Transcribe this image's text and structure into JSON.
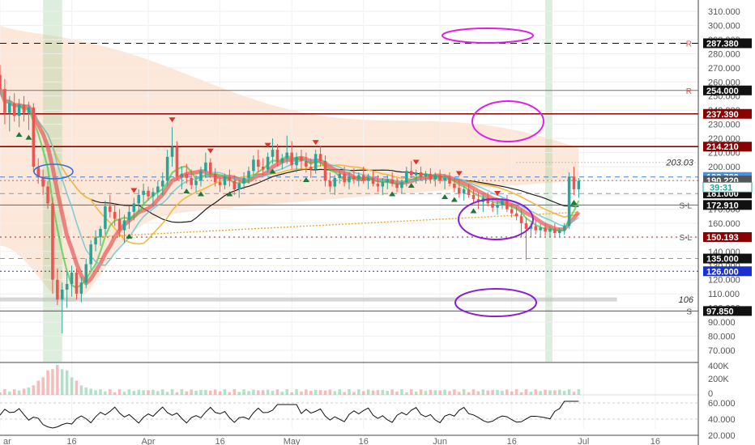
{
  "chart_data": {
    "type": "candlestick",
    "price_axis": {
      "ylim": [
        62,
        318
      ],
      "ticks": [
        "70.000",
        "80.000",
        "90.000",
        "100.000",
        "110.000",
        "120.000",
        "130.000",
        "140.000",
        "150.000",
        "160.000",
        "170.000",
        "180.000",
        "190.000",
        "200.000",
        "210.000",
        "220.000",
        "230.000",
        "240.000",
        "250.000",
        "260.000",
        "270.000",
        "280.000",
        "290.000",
        "300.000",
        "310.000"
      ]
    },
    "volume_axis": {
      "ticks": [
        "400K",
        "200K",
        "0"
      ]
    },
    "rsi_axis": {
      "ylim": [
        20,
        68
      ],
      "ticks": [
        "60.000",
        "40.000",
        "20.000"
      ]
    },
    "x_ticks": [
      {
        "label": "ar",
        "day": 0
      },
      {
        "label": "16",
        "day": 15
      },
      {
        "label": "Apr",
        "day": 31
      },
      {
        "label": "16",
        "day": 46
      },
      {
        "label": "May",
        "day": 61
      },
      {
        "label": "16",
        "day": 76
      },
      {
        "label": "Jun",
        "day": 92
      },
      {
        "label": "16",
        "day": 107
      },
      {
        "label": "Jul",
        "day": 122
      },
      {
        "label": "16",
        "day": 137
      }
    ],
    "x_range": [
      0,
      146
    ],
    "levels": [
      {
        "value": 287.38,
        "label": "287.380",
        "tag": "R",
        "color": "#111111",
        "dash": "8,6",
        "bg": "#111111"
      },
      {
        "value": 254.0,
        "label": "254.000",
        "tag": "R",
        "color": "#777777",
        "dash": "",
        "bg": "#111111"
      },
      {
        "value": 237.39,
        "label": "237.390",
        "tag": "",
        "color": "#8b0000",
        "dash": "",
        "bg": "#8b0000"
      },
      {
        "value": 214.21,
        "label": "214.210",
        "tag": "",
        "color": "#8b0000",
        "dash": "",
        "bg": "#8b0000"
      },
      {
        "value": 192.73,
        "label": "192.730",
        "tag": "",
        "color": "#4a7fd0",
        "dash": "6,5",
        "bg": "#4a8fe0"
      },
      {
        "value": 190.22,
        "label": "190.220",
        "tag": "",
        "color": "#cc6666",
        "dash": "2,3",
        "bg": "#555555"
      },
      {
        "value": 181.0,
        "label": "181.000",
        "tag": "",
        "color": "#999999",
        "dash": "6,5",
        "bg": "#111111"
      },
      {
        "value": 172.91,
        "label": "172.910",
        "tag": "S-L",
        "color": "#666666",
        "dash": "",
        "bg": "#111111"
      },
      {
        "value": 150.193,
        "label": "150.193",
        "tag": "S-L",
        "color": "#b22222",
        "dash": "2,4",
        "bg": "#8b0000"
      },
      {
        "value": 135.0,
        "label": "135.000",
        "tag": "",
        "color": "#999999",
        "dash": "6,5",
        "bg": "#111111"
      },
      {
        "value": 126.0,
        "label": "126.000",
        "tag": "",
        "color": "#2233cc",
        "dash": "2,3",
        "bg": "#1a2fd0"
      },
      {
        "value": 97.85,
        "label": "97.850",
        "tag": "S",
        "color": "#555555",
        "dash": "",
        "bg": "#111111"
      }
    ],
    "price_tag": {
      "label": "39:31",
      "value": 185.5
    },
    "annotations": [
      {
        "text": "203.03",
        "value": 203.03
      },
      {
        "text": "106",
        "value": 106
      }
    ],
    "candles": [
      [
        0,
        265,
        272,
        252,
        255
      ],
      [
        1,
        255,
        262,
        230,
        238
      ],
      [
        2,
        238,
        250,
        225,
        245
      ],
      [
        3,
        245,
        252,
        232,
        236
      ],
      [
        4,
        236,
        248,
        228,
        244
      ],
      [
        5,
        244,
        250,
        232,
        238
      ],
      [
        6,
        238,
        246,
        226,
        242
      ],
      [
        7,
        242,
        245,
        196,
        200
      ],
      [
        8,
        200,
        206,
        188,
        193
      ],
      [
        9,
        193,
        198,
        180,
        186
      ],
      [
        10,
        186,
        190,
        170,
        174
      ],
      [
        11,
        174,
        178,
        110,
        120
      ],
      [
        12,
        120,
        128,
        102,
        106
      ],
      [
        13,
        106,
        118,
        82,
        113
      ],
      [
        14,
        113,
        126,
        100,
        117
      ],
      [
        15,
        117,
        130,
        108,
        125
      ],
      [
        16,
        125,
        128,
        106,
        110
      ],
      [
        17,
        110,
        122,
        104,
        118
      ],
      [
        18,
        118,
        135,
        114,
        131
      ],
      [
        19,
        131,
        148,
        127,
        145
      ],
      [
        20,
        145,
        155,
        140,
        150
      ],
      [
        21,
        150,
        158,
        144,
        156
      ],
      [
        22,
        156,
        176,
        152,
        172
      ],
      [
        23,
        172,
        180,
        164,
        168
      ],
      [
        24,
        168,
        174,
        158,
        163
      ],
      [
        25,
        163,
        170,
        150,
        155
      ],
      [
        26,
        155,
        166,
        146,
        162
      ],
      [
        27,
        162,
        172,
        156,
        168
      ],
      [
        28,
        168,
        178,
        162,
        174
      ],
      [
        29,
        174,
        184,
        168,
        180
      ],
      [
        30,
        180,
        188,
        174,
        183
      ],
      [
        31,
        183,
        186,
        176,
        179
      ],
      [
        32,
        179,
        185,
        172,
        182
      ],
      [
        33,
        182,
        190,
        178,
        186
      ],
      [
        34,
        186,
        196,
        180,
        190
      ],
      [
        35,
        190,
        212,
        186,
        207
      ],
      [
        36,
        207,
        228,
        200,
        214
      ],
      [
        37,
        214,
        218,
        190,
        193
      ],
      [
        38,
        193,
        200,
        184,
        195
      ],
      [
        39,
        195,
        202,
        188,
        192
      ],
      [
        40,
        192,
        198,
        184,
        187
      ],
      [
        41,
        187,
        194,
        182,
        190
      ],
      [
        42,
        190,
        200,
        186,
        197
      ],
      [
        43,
        197,
        210,
        192,
        203
      ],
      [
        44,
        203,
        206,
        192,
        195
      ],
      [
        45,
        195,
        199,
        186,
        189
      ],
      [
        46,
        189,
        193,
        182,
        187
      ],
      [
        47,
        187,
        195,
        184,
        193
      ],
      [
        48,
        193,
        198,
        186,
        190
      ],
      [
        49,
        190,
        194,
        180,
        184
      ],
      [
        50,
        184,
        190,
        178,
        188
      ],
      [
        51,
        188,
        196,
        184,
        192
      ],
      [
        52,
        192,
        200,
        188,
        197
      ],
      [
        53,
        197,
        208,
        194,
        205
      ],
      [
        54,
        205,
        212,
        196,
        200
      ],
      [
        55,
        200,
        206,
        194,
        198
      ],
      [
        56,
        198,
        210,
        196,
        207
      ],
      [
        57,
        207,
        220,
        202,
        212
      ],
      [
        58,
        212,
        216,
        200,
        203
      ],
      [
        59,
        203,
        209,
        198,
        206
      ],
      [
        60,
        206,
        222,
        202,
        210
      ],
      [
        61,
        210,
        218,
        198,
        201
      ],
      [
        62,
        201,
        210,
        196,
        207
      ],
      [
        63,
        207,
        212,
        198,
        204
      ],
      [
        64,
        204,
        210,
        196,
        200
      ],
      [
        65,
        200,
        206,
        192,
        198
      ],
      [
        66,
        198,
        212,
        195,
        209
      ],
      [
        67,
        209,
        215,
        200,
        204
      ],
      [
        68,
        204,
        208,
        186,
        190
      ],
      [
        69,
        190,
        196,
        182,
        186
      ],
      [
        70,
        186,
        194,
        180,
        192
      ],
      [
        71,
        192,
        198,
        188,
        195
      ],
      [
        72,
        195,
        200,
        186,
        189
      ],
      [
        73,
        189,
        196,
        184,
        193
      ],
      [
        74,
        193,
        199,
        188,
        191
      ],
      [
        75,
        191,
        196,
        186,
        194
      ],
      [
        76,
        194,
        200,
        188,
        190
      ],
      [
        77,
        190,
        195,
        184,
        192
      ],
      [
        78,
        192,
        197,
        186,
        188
      ],
      [
        79,
        188,
        194,
        182,
        186
      ],
      [
        80,
        186,
        192,
        180,
        189
      ],
      [
        81,
        189,
        194,
        184,
        191
      ],
      [
        82,
        191,
        196,
        186,
        188
      ],
      [
        83,
        188,
        192,
        182,
        185
      ],
      [
        84,
        185,
        191,
        181,
        189
      ],
      [
        85,
        189,
        200,
        186,
        197
      ],
      [
        86,
        197,
        204,
        192,
        194
      ],
      [
        87,
        194,
        198,
        188,
        196
      ],
      [
        88,
        196,
        200,
        190,
        193
      ],
      [
        89,
        193,
        197,
        188,
        195
      ],
      [
        90,
        195,
        199,
        188,
        191
      ],
      [
        91,
        191,
        196,
        186,
        194
      ],
      [
        92,
        194,
        198,
        188,
        190
      ],
      [
        93,
        190,
        195,
        184,
        192
      ],
      [
        94,
        192,
        196,
        186,
        188
      ],
      [
        95,
        188,
        192,
        182,
        185
      ],
      [
        96,
        185,
        190,
        178,
        181
      ],
      [
        97,
        181,
        186,
        176,
        184
      ],
      [
        98,
        184,
        188,
        178,
        180
      ],
      [
        99,
        180,
        184,
        174,
        177
      ],
      [
        100,
        177,
        182,
        170,
        175
      ],
      [
        101,
        175,
        180,
        168,
        178
      ],
      [
        102,
        178,
        182,
        172,
        174
      ],
      [
        103,
        174,
        178,
        168,
        171
      ],
      [
        104,
        171,
        176,
        166,
        173
      ],
      [
        105,
        173,
        178,
        170,
        176
      ],
      [
        106,
        176,
        180,
        168,
        170
      ],
      [
        107,
        170,
        174,
        164,
        167
      ],
      [
        108,
        167,
        172,
        162,
        165
      ],
      [
        109,
        165,
        170,
        150,
        160
      ],
      [
        110,
        160,
        164,
        134,
        156
      ],
      [
        111,
        156,
        160,
        150,
        158
      ],
      [
        112,
        158,
        162,
        152,
        155
      ],
      [
        113,
        155,
        160,
        150,
        157
      ],
      [
        114,
        157,
        160,
        151,
        154
      ],
      [
        115,
        154,
        158,
        150,
        156
      ],
      [
        116,
        156,
        160,
        150,
        153
      ],
      [
        117,
        153,
        157,
        150,
        155
      ],
      [
        118,
        155,
        160,
        152,
        158
      ],
      [
        119,
        158,
        196,
        156,
        193
      ],
      [
        120,
        193,
        200,
        180,
        184
      ],
      [
        121,
        184,
        192,
        178,
        190
      ]
    ]
  }
}
